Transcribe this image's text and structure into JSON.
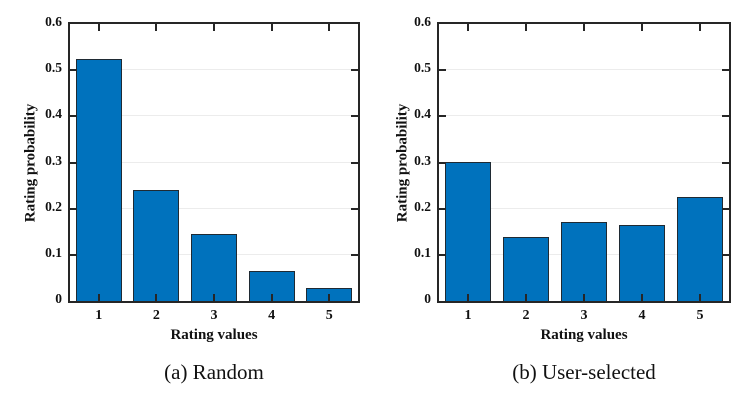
{
  "figure": {
    "background": "#ffffff",
    "text_color": "#111111"
  },
  "chart_data": [
    {
      "type": "bar",
      "panel": "a",
      "caption": "(a)  Random",
      "categories": [
        "1",
        "2",
        "3",
        "4",
        "5"
      ],
      "values": [
        0.525,
        0.241,
        0.145,
        0.064,
        0.028
      ],
      "xlabel": "Rating values",
      "ylabel": "Rating probability",
      "ylim": [
        0,
        0.6
      ],
      "yticks": [
        0,
        0.1,
        0.2,
        0.3,
        0.4,
        0.5,
        0.6
      ],
      "ytick_labels": [
        "0",
        "0.1",
        "0.2",
        "0.3",
        "0.4",
        "0.5",
        "0.6"
      ],
      "grid": true,
      "legend": "none",
      "bar_width_fraction": 0.8,
      "bar_color": "#0072BD",
      "bar_edge_color": "#1f2a33",
      "axis_color": "#262626",
      "grid_color": "#ececec"
    },
    {
      "type": "bar",
      "panel": "b",
      "caption": "(b)  User-selected",
      "categories": [
        "1",
        "2",
        "3",
        "4",
        "5"
      ],
      "values": [
        0.301,
        0.139,
        0.172,
        0.164,
        0.225
      ],
      "xlabel": "Rating values",
      "ylabel": "Rating probability",
      "ylim": [
        0,
        0.6
      ],
      "yticks": [
        0,
        0.1,
        0.2,
        0.3,
        0.4,
        0.5,
        0.6
      ],
      "ytick_labels": [
        "0",
        "0.1",
        "0.2",
        "0.3",
        "0.4",
        "0.5",
        "0.6"
      ],
      "grid": true,
      "legend": "none",
      "bar_width_fraction": 0.8,
      "bar_color": "#0072BD",
      "bar_edge_color": "#1f2a33",
      "axis_color": "#262626",
      "grid_color": "#ececec"
    }
  ]
}
